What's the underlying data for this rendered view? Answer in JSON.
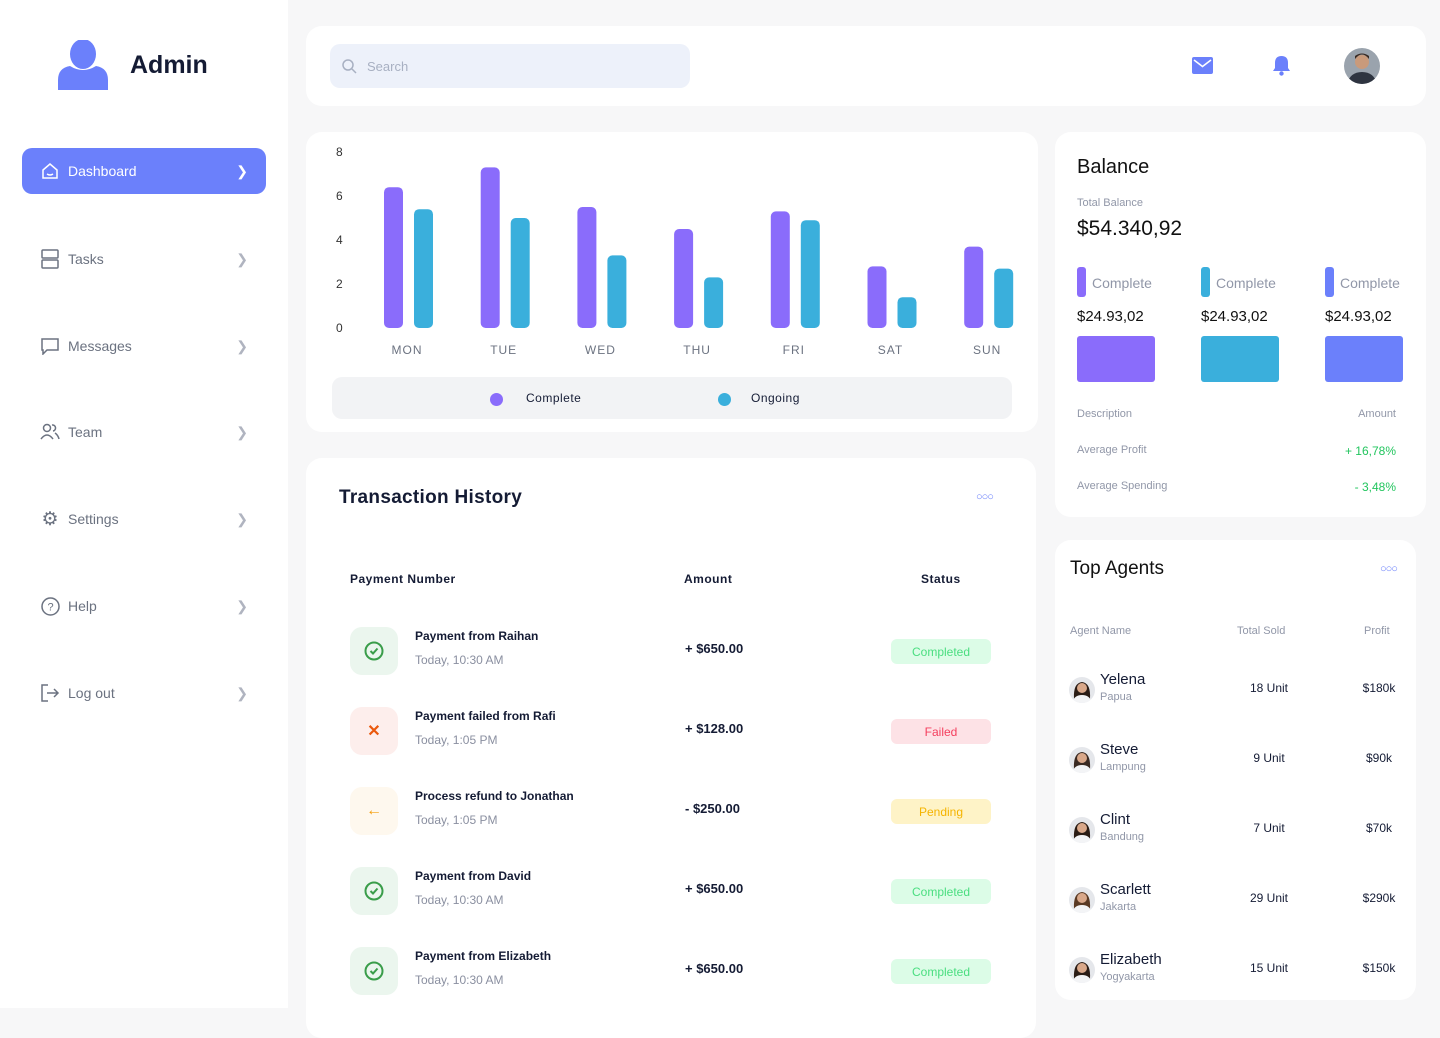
{
  "sidebar": {
    "brand": "Admin",
    "items": [
      {
        "label": "Dashboard"
      },
      {
        "label": "Tasks"
      },
      {
        "label": "Messages"
      },
      {
        "label": "Team"
      },
      {
        "label": "Settings"
      },
      {
        "label": "Help"
      },
      {
        "label": "Log out"
      }
    ]
  },
  "topbar": {
    "search_placeholder": "Search"
  },
  "chart_data": {
    "type": "bar",
    "categories": [
      "MON",
      "TUE",
      "WED",
      "THU",
      "FRI",
      "SAT",
      "SUN"
    ],
    "series": [
      {
        "name": "Complete",
        "color": "#8a6cfb",
        "values": [
          6.4,
          7.3,
          5.5,
          4.5,
          5.3,
          2.8,
          3.7
        ]
      },
      {
        "name": "Ongoing",
        "color": "#3aafdc",
        "values": [
          5.4,
          5.0,
          3.3,
          2.3,
          4.9,
          1.4,
          2.7
        ]
      }
    ],
    "yticks": [
      "0",
      "2",
      "4",
      "6",
      "8"
    ],
    "ylim": [
      0,
      8
    ],
    "legend": "bottom"
  },
  "transactions": {
    "title": "Transaction History",
    "headers": {
      "number": "Payment Number",
      "amount": "Amount",
      "status": "Status"
    },
    "rows": [
      {
        "name": "Payment from Raihan",
        "time": "Today, 10:30 AM",
        "amount": "+ $650.00",
        "status": "Completed",
        "type": "ok"
      },
      {
        "name": "Payment failed from Rafi",
        "time": "Today, 1:05 PM",
        "amount": "+ $128.00",
        "status": "Failed",
        "type": "fail"
      },
      {
        "name": "Process refund to Jonathan",
        "time": "Today, 1:05 PM",
        "amount": "- $250.00",
        "status": "Pending",
        "type": "pend"
      },
      {
        "name": "Payment from David",
        "time": "Today, 10:30 AM",
        "amount": "+ $650.00",
        "status": "Completed",
        "type": "ok"
      },
      {
        "name": "Payment from Elizabeth",
        "time": "Today, 10:30 AM",
        "amount": "+ $650.00",
        "status": "Completed",
        "type": "ok"
      }
    ]
  },
  "balance": {
    "title": "Balance",
    "total_label": "Total Balance",
    "total": "$54.340,92",
    "items": [
      {
        "label": "Complete",
        "value": "$24.93,02",
        "color": "#8a6cfb"
      },
      {
        "label": "Complete",
        "value": "$24.93,02",
        "color": "#3aafdc"
      },
      {
        "label": "Complete",
        "value": "$24.93,02",
        "color": "#6b80fb"
      }
    ],
    "desc_header": "Description",
    "amount_header": "Amount",
    "rows": [
      {
        "label": "Average Profit",
        "value": "+ 16,78%"
      },
      {
        "label": "Average Spending",
        "value": "- 3,48%"
      }
    ]
  },
  "agents": {
    "title": "Top Agents",
    "headers": {
      "name": "Agent Name",
      "sold": "Total Sold",
      "profit": "Profit"
    },
    "rows": [
      {
        "name": "Yelena",
        "loc": "Papua",
        "sold": "18 Unit",
        "profit": "$180k"
      },
      {
        "name": "Steve",
        "loc": "Lampung",
        "sold": "9 Unit",
        "profit": "$90k"
      },
      {
        "name": "Clint",
        "loc": "Bandung",
        "sold": "7 Unit",
        "profit": "$70k"
      },
      {
        "name": "Scarlett",
        "loc": "Jakarta",
        "sold": "29 Unit",
        "profit": "$290k"
      },
      {
        "name": "Elizabeth",
        "loc": "Yogyakarta",
        "sold": "15 Unit",
        "profit": "$150k"
      }
    ]
  }
}
